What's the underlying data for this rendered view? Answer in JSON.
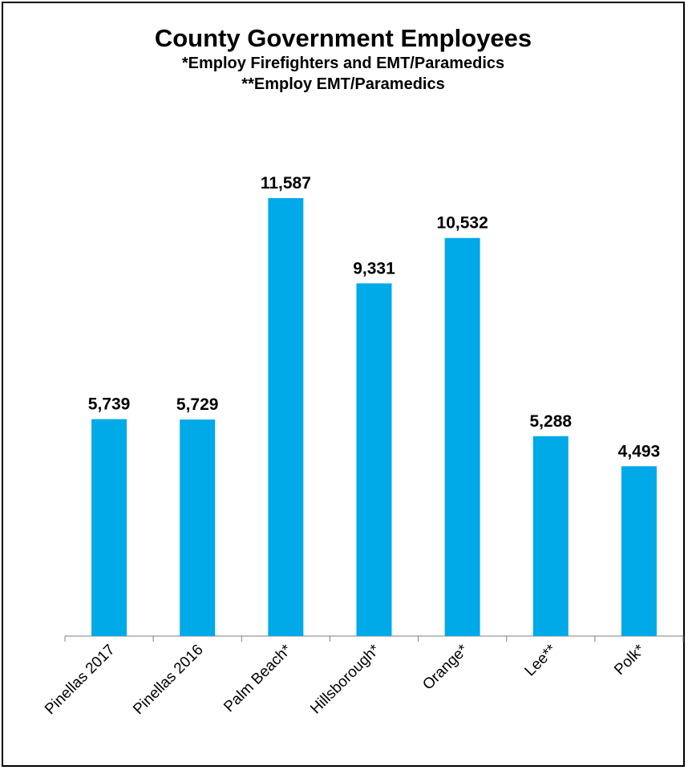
{
  "chart_data": {
    "type": "bar",
    "title": "County Government Employees",
    "subtitles": [
      "*Employ Firefighters and EMT/Paramedics",
      "**Employ EMT/Paramedics"
    ],
    "categories": [
      "Pinellas 2017",
      "Pinellas 2016",
      "Palm Beach*",
      "Hillsborough*",
      "Orange*",
      "Lee**",
      "Polk*"
    ],
    "values": [
      5739,
      5729,
      11587,
      9331,
      10532,
      5288,
      4493
    ],
    "data_labels": [
      "5,739",
      "5,729",
      "11,587",
      "9,331",
      "10,532",
      "5,288",
      "4,493"
    ],
    "xlabel": "",
    "ylabel": "",
    "ylim": [
      0,
      12000
    ],
    "grid": false,
    "legend": "none",
    "bar_color": "#00a9e8"
  }
}
